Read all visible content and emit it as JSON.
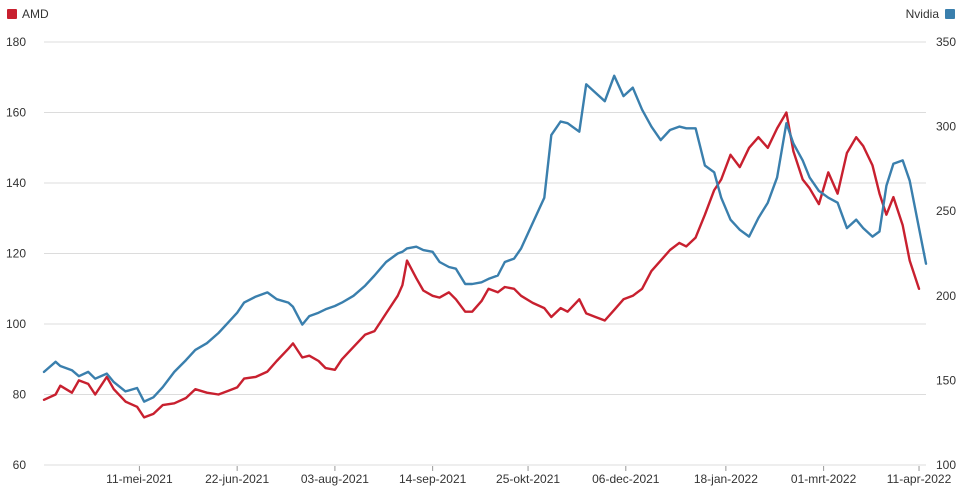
{
  "chart_data": {
    "type": "line",
    "title": "",
    "legend": [
      {
        "name": "AMD",
        "color": "#c8202f",
        "axis": "left",
        "placement": "top-left"
      },
      {
        "name": "Nvidia",
        "color": "#3a7fad",
        "axis": "right",
        "placement": "top-right"
      }
    ],
    "x_ticks": [
      "11-mei-2021",
      "22-jun-2021",
      "03-aug-2021",
      "14-sep-2021",
      "25-okt-2021",
      "06-dec-2021",
      "18-jan-2022",
      "01-mrt-2022",
      "11-apr-2022"
    ],
    "y_left": {
      "ticks": [
        "60",
        "80",
        "100",
        "120",
        "140",
        "160",
        "180"
      ],
      "range": [
        60,
        180
      ]
    },
    "y_right": {
      "ticks": [
        "100",
        "150",
        "200",
        "250",
        "300",
        "350"
      ],
      "range": [
        100,
        350
      ]
    },
    "grid": true,
    "x_range": [
      "2021-03-31",
      "2022-04-14"
    ],
    "series": [
      {
        "name": "AMD",
        "axis": "left",
        "color": "#c8202f",
        "points": [
          [
            "2021-03-31",
            78.5
          ],
          [
            "2021-04-05",
            80.0
          ],
          [
            "2021-04-07",
            82.5
          ],
          [
            "2021-04-12",
            80.5
          ],
          [
            "2021-04-15",
            84.0
          ],
          [
            "2021-04-19",
            83.0
          ],
          [
            "2021-04-22",
            80.0
          ],
          [
            "2021-04-27",
            85.0
          ],
          [
            "2021-04-30",
            81.5
          ],
          [
            "2021-05-05",
            78.0
          ],
          [
            "2021-05-10",
            76.5
          ],
          [
            "2021-05-13",
            73.5
          ],
          [
            "2021-05-17",
            74.5
          ],
          [
            "2021-05-21",
            77.0
          ],
          [
            "2021-05-26",
            77.5
          ],
          [
            "2021-05-31",
            79.0
          ],
          [
            "2021-06-04",
            81.5
          ],
          [
            "2021-06-09",
            80.5
          ],
          [
            "2021-06-14",
            80.0
          ],
          [
            "2021-06-18",
            81.0
          ],
          [
            "2021-06-22",
            82.0
          ],
          [
            "2021-06-25",
            84.5
          ],
          [
            "2021-06-30",
            85.0
          ],
          [
            "2021-07-05",
            86.5
          ],
          [
            "2021-07-09",
            89.5
          ],
          [
            "2021-07-14",
            93.0
          ],
          [
            "2021-07-16",
            94.5
          ],
          [
            "2021-07-20",
            90.5
          ],
          [
            "2021-07-23",
            91.0
          ],
          [
            "2021-07-27",
            89.5
          ],
          [
            "2021-07-30",
            87.5
          ],
          [
            "2021-08-03",
            87.0
          ],
          [
            "2021-08-06",
            90.0
          ],
          [
            "2021-08-11",
            93.5
          ],
          [
            "2021-08-16",
            97.0
          ],
          [
            "2021-08-20",
            98.0
          ],
          [
            "2021-08-25",
            103.0
          ],
          [
            "2021-08-30",
            108.0
          ],
          [
            "2021-09-01",
            111.0
          ],
          [
            "2021-09-03",
            118.0
          ],
          [
            "2021-09-07",
            113.0
          ],
          [
            "2021-09-10",
            109.5
          ],
          [
            "2021-09-14",
            108.0
          ],
          [
            "2021-09-17",
            107.5
          ],
          [
            "2021-09-21",
            109.0
          ],
          [
            "2021-09-24",
            107.0
          ],
          [
            "2021-09-28",
            103.5
          ],
          [
            "2021-10-01",
            103.5
          ],
          [
            "2021-10-05",
            106.5
          ],
          [
            "2021-10-08",
            110.0
          ],
          [
            "2021-10-12",
            109.0
          ],
          [
            "2021-10-15",
            110.5
          ],
          [
            "2021-10-19",
            110.0
          ],
          [
            "2021-10-22",
            108.0
          ],
          [
            "2021-10-27",
            106.0
          ],
          [
            "2021-11-01",
            104.5
          ],
          [
            "2021-11-04",
            102.0
          ],
          [
            "2021-11-08",
            104.5
          ],
          [
            "2021-11-11",
            103.5
          ],
          [
            "2021-11-16",
            107.0
          ],
          [
            "2021-11-19",
            103.0
          ],
          [
            "2021-11-23",
            102.0
          ],
          [
            "2021-11-27",
            101.0
          ],
          [
            "2021-12-01",
            104.0
          ],
          [
            "2021-12-05",
            107.0
          ],
          [
            "2021-12-09",
            108.0
          ],
          [
            "2021-12-13",
            110.0
          ],
          [
            "2021-12-17",
            115.0
          ],
          [
            "2021-12-21",
            118.0
          ],
          [
            "2021-12-25",
            121.0
          ],
          [
            "2021-12-29",
            123.0
          ],
          [
            "2022-01-01",
            122.0
          ],
          [
            "2022-01-05",
            124.5
          ],
          [
            "2022-01-09",
            131.0
          ],
          [
            "2022-01-13",
            138.0
          ],
          [
            "2022-01-16",
            141.0
          ],
          [
            "2022-01-20",
            148.0
          ],
          [
            "2022-01-24",
            144.5
          ],
          [
            "2022-01-28",
            150.0
          ],
          [
            "2022-02-01",
            153.0
          ],
          [
            "2022-02-05",
            150.0
          ],
          [
            "2022-02-09",
            155.5
          ],
          [
            "2022-02-13",
            160.0
          ],
          [
            "2022-02-16",
            149.0
          ],
          [
            "2022-02-20",
            141.0
          ],
          [
            "2022-02-23",
            138.5
          ],
          [
            "2022-02-27",
            134.0
          ],
          [
            "2022-03-03",
            143.0
          ],
          [
            "2022-03-07",
            137.0
          ],
          [
            "2022-03-11",
            148.5
          ],
          [
            "2022-03-15",
            153.0
          ],
          [
            "2022-03-18",
            150.5
          ],
          [
            "2022-03-22",
            145.0
          ],
          [
            "2022-03-25",
            137.0
          ],
          [
            "2022-03-28",
            131.0
          ],
          [
            "2022-03-31",
            136.0
          ],
          [
            "2022-04-04",
            128.0
          ],
          [
            "2022-04-07",
            118.0
          ],
          [
            "2022-04-11",
            110.0
          ]
        ]
      },
      {
        "name": "Nvidia",
        "axis": "right",
        "color": "#3a7fad",
        "points": [
          [
            "2021-03-31",
            155.0
          ],
          [
            "2021-04-05",
            161.0
          ],
          [
            "2021-04-07",
            158.5
          ],
          [
            "2021-04-12",
            156.0
          ],
          [
            "2021-04-15",
            152.5
          ],
          [
            "2021-04-19",
            155.0
          ],
          [
            "2021-04-22",
            151.0
          ],
          [
            "2021-04-27",
            154.0
          ],
          [
            "2021-04-30",
            149.0
          ],
          [
            "2021-05-05",
            143.5
          ],
          [
            "2021-05-10",
            145.5
          ],
          [
            "2021-05-13",
            137.5
          ],
          [
            "2021-05-17",
            140.0
          ],
          [
            "2021-05-21",
            146.0
          ],
          [
            "2021-05-26",
            155.0
          ],
          [
            "2021-05-31",
            162.0
          ],
          [
            "2021-06-04",
            168.0
          ],
          [
            "2021-06-09",
            172.0
          ],
          [
            "2021-06-14",
            178.0
          ],
          [
            "2021-06-18",
            184.0
          ],
          [
            "2021-06-22",
            190.0
          ],
          [
            "2021-06-25",
            196.0
          ],
          [
            "2021-06-30",
            199.5
          ],
          [
            "2021-07-05",
            202.0
          ],
          [
            "2021-07-09",
            198.0
          ],
          [
            "2021-07-14",
            196.0
          ],
          [
            "2021-07-16",
            193.5
          ],
          [
            "2021-07-20",
            183.0
          ],
          [
            "2021-07-23",
            188.0
          ],
          [
            "2021-07-27",
            190.0
          ],
          [
            "2021-07-30",
            192.0
          ],
          [
            "2021-08-03",
            194.0
          ],
          [
            "2021-08-06",
            196.0
          ],
          [
            "2021-08-11",
            200.0
          ],
          [
            "2021-08-16",
            206.0
          ],
          [
            "2021-08-20",
            212.0
          ],
          [
            "2021-08-25",
            220.0
          ],
          [
            "2021-08-30",
            225.0
          ],
          [
            "2021-09-01",
            226.0
          ],
          [
            "2021-09-03",
            228.0
          ],
          [
            "2021-09-07",
            229.0
          ],
          [
            "2021-09-10",
            227.0
          ],
          [
            "2021-09-14",
            226.0
          ],
          [
            "2021-09-17",
            220.0
          ],
          [
            "2021-09-21",
            217.0
          ],
          [
            "2021-09-24",
            216.0
          ],
          [
            "2021-09-28",
            207.0
          ],
          [
            "2021-10-01",
            207.0
          ],
          [
            "2021-10-05",
            208.0
          ],
          [
            "2021-10-08",
            210.0
          ],
          [
            "2021-10-12",
            212.0
          ],
          [
            "2021-10-15",
            220.0
          ],
          [
            "2021-10-19",
            222.0
          ],
          [
            "2021-10-22",
            228.0
          ],
          [
            "2021-10-27",
            243.0
          ],
          [
            "2021-11-01",
            258.0
          ],
          [
            "2021-11-04",
            295.0
          ],
          [
            "2021-11-08",
            303.0
          ],
          [
            "2021-11-11",
            302.0
          ],
          [
            "2021-11-16",
            297.0
          ],
          [
            "2021-11-19",
            325.0
          ],
          [
            "2021-11-23",
            320.0
          ],
          [
            "2021-11-27",
            315.0
          ],
          [
            "2021-12-01",
            330.0
          ],
          [
            "2021-12-05",
            318.0
          ],
          [
            "2021-12-09",
            323.0
          ],
          [
            "2021-12-13",
            310.0
          ],
          [
            "2021-12-17",
            300.0
          ],
          [
            "2021-12-21",
            292.0
          ],
          [
            "2021-12-25",
            298.0
          ],
          [
            "2021-12-29",
            300.0
          ],
          [
            "2022-01-01",
            299.0
          ],
          [
            "2022-01-05",
            299.0
          ],
          [
            "2022-01-09",
            277.0
          ],
          [
            "2022-01-13",
            273.0
          ],
          [
            "2022-01-16",
            258.0
          ],
          [
            "2022-01-20",
            245.0
          ],
          [
            "2022-01-24",
            239.0
          ],
          [
            "2022-01-28",
            235.0
          ],
          [
            "2022-02-01",
            246.0
          ],
          [
            "2022-02-05",
            255.0
          ],
          [
            "2022-02-09",
            270.0
          ],
          [
            "2022-02-13",
            302.0
          ],
          [
            "2022-02-16",
            290.0
          ],
          [
            "2022-02-20",
            280.0
          ],
          [
            "2022-02-23",
            270.0
          ],
          [
            "2022-02-27",
            262.0
          ],
          [
            "2022-03-03",
            258.0
          ],
          [
            "2022-03-07",
            255.0
          ],
          [
            "2022-03-11",
            240.0
          ],
          [
            "2022-03-15",
            245.0
          ],
          [
            "2022-03-18",
            240.0
          ],
          [
            "2022-03-22",
            235.0
          ],
          [
            "2022-03-25",
            238.0
          ],
          [
            "2022-03-28",
            265.0
          ],
          [
            "2022-03-31",
            278.0
          ],
          [
            "2022-04-04",
            280.0
          ],
          [
            "2022-04-07",
            268.0
          ],
          [
            "2022-04-11",
            240.0
          ],
          [
            "2022-04-14",
            219.0
          ]
        ]
      }
    ]
  }
}
